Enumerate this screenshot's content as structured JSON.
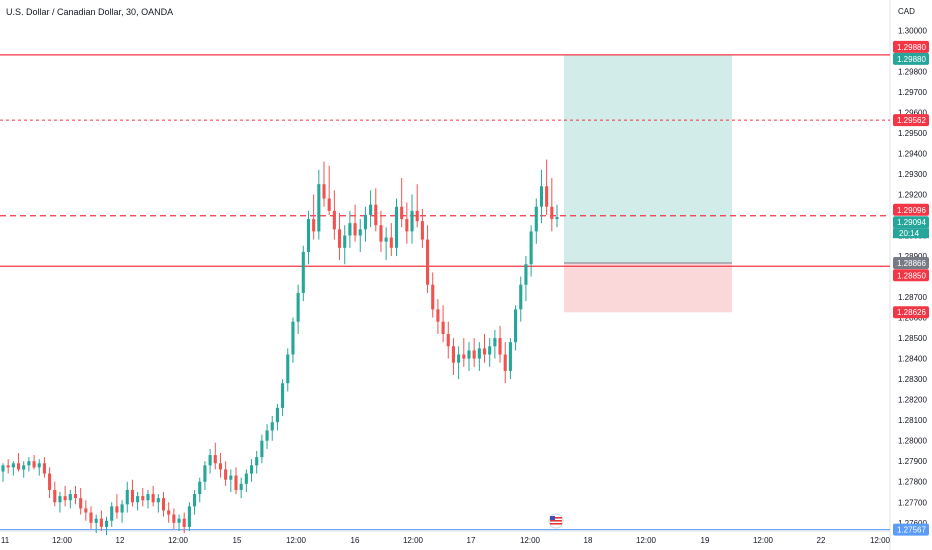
{
  "chart_data": {
    "type": "candlestick",
    "title": "U.S. Dollar / Canadian Dollar, 30, OANDA",
    "currency": "CAD",
    "ylim": [
      1.2756,
      1.3005
    ],
    "y_ticks": [
      "1.30000",
      "1.29800",
      "1.29700",
      "1.29600",
      "1.29500",
      "1.29400",
      "1.29300",
      "1.29200",
      "1.29000",
      "1.28900",
      "1.28700",
      "1.28600",
      "1.28500",
      "1.28400",
      "1.28300",
      "1.28200",
      "1.28100",
      "1.28000",
      "1.27900",
      "1.27800",
      "1.27700",
      "1.27600"
    ],
    "x_ticks": [
      "11",
      "12:00",
      "12",
      "12:00",
      "15",
      "12:00",
      "16",
      "12:00",
      "17",
      "12:00",
      "18",
      "12:00",
      "19",
      "12:00",
      "22",
      "12:00"
    ],
    "colors": {
      "up": "#26a69a",
      "down": "#ef5350",
      "level": "#f23645",
      "low": "#5b9cf6"
    },
    "candles": [
      [
        1.2785,
        1.2789,
        1.278,
        1.2788
      ],
      [
        1.2788,
        1.2791,
        1.2784,
        1.2787
      ],
      [
        1.2787,
        1.279,
        1.2783,
        1.2789
      ],
      [
        1.2789,
        1.2794,
        1.2785,
        1.2786
      ],
      [
        1.2786,
        1.279,
        1.2782,
        1.2788
      ],
      [
        1.2788,
        1.2792,
        1.2785,
        1.279
      ],
      [
        1.279,
        1.2793,
        1.2786,
        1.2787
      ],
      [
        1.2787,
        1.2791,
        1.2783,
        1.2789
      ],
      [
        1.2789,
        1.2792,
        1.2782,
        1.2784
      ],
      [
        1.2784,
        1.2787,
        1.2772,
        1.2776
      ],
      [
        1.2776,
        1.278,
        1.2768,
        1.277
      ],
      [
        1.277,
        1.2775,
        1.2765,
        1.2773
      ],
      [
        1.2773,
        1.2778,
        1.2768,
        1.2771
      ],
      [
        1.2771,
        1.2776,
        1.2767,
        1.2774
      ],
      [
        1.2774,
        1.2778,
        1.2769,
        1.2772
      ],
      [
        1.2772,
        1.2777,
        1.2764,
        1.2767
      ],
      [
        1.2767,
        1.2771,
        1.2761,
        1.2765
      ],
      [
        1.2765,
        1.2768,
        1.2757,
        1.276
      ],
      [
        1.276,
        1.2764,
        1.2755,
        1.2762
      ],
      [
        1.2762,
        1.2766,
        1.2756,
        1.2758
      ],
      [
        1.2758,
        1.2763,
        1.2754,
        1.2761
      ],
      [
        1.2761,
        1.277,
        1.2758,
        1.2768
      ],
      [
        1.2768,
        1.2774,
        1.2762,
        1.2765
      ],
      [
        1.2765,
        1.2771,
        1.276,
        1.2769
      ],
      [
        1.2769,
        1.278,
        1.2765,
        1.2776
      ],
      [
        1.2776,
        1.2781,
        1.2768,
        1.277
      ],
      [
        1.277,
        1.2775,
        1.2766,
        1.2773
      ],
      [
        1.2773,
        1.2777,
        1.2768,
        1.2771
      ],
      [
        1.2771,
        1.2776,
        1.2767,
        1.2774
      ],
      [
        1.2774,
        1.2778,
        1.2768,
        1.277
      ],
      [
        1.277,
        1.2774,
        1.2765,
        1.2772
      ],
      [
        1.2772,
        1.2775,
        1.2763,
        1.2766
      ],
      [
        1.2766,
        1.277,
        1.276,
        1.2764
      ],
      [
        1.2764,
        1.2767,
        1.2757,
        1.276
      ],
      [
        1.276,
        1.2764,
        1.2756,
        1.2762
      ],
      [
        1.2762,
        1.2765,
        1.2755,
        1.2758
      ],
      [
        1.2758,
        1.277,
        1.2756,
        1.2768
      ],
      [
        1.2768,
        1.2776,
        1.2764,
        1.2774
      ],
      [
        1.2774,
        1.2782,
        1.277,
        1.278
      ],
      [
        1.278,
        1.279,
        1.2776,
        1.2788
      ],
      [
        1.2788,
        1.2796,
        1.2784,
        1.2793
      ],
      [
        1.2793,
        1.2799,
        1.2786,
        1.2789
      ],
      [
        1.2789,
        1.2794,
        1.2782,
        1.2786
      ],
      [
        1.2786,
        1.279,
        1.2778,
        1.2781
      ],
      [
        1.2781,
        1.2786,
        1.2775,
        1.2783
      ],
      [
        1.2783,
        1.2787,
        1.2774,
        1.2776
      ],
      [
        1.2776,
        1.2782,
        1.2772,
        1.2779
      ],
      [
        1.2779,
        1.2786,
        1.2775,
        1.2784
      ],
      [
        1.2784,
        1.2791,
        1.278,
        1.2788
      ],
      [
        1.2788,
        1.2795,
        1.2784,
        1.2792
      ],
      [
        1.2792,
        1.2803,
        1.2789,
        1.28
      ],
      [
        1.28,
        1.2808,
        1.2796,
        1.2805
      ],
      [
        1.2805,
        1.2812,
        1.28,
        1.2809
      ],
      [
        1.2809,
        1.2818,
        1.2805,
        1.2816
      ],
      [
        1.2816,
        1.283,
        1.2812,
        1.2828
      ],
      [
        1.2828,
        1.2845,
        1.2824,
        1.2842
      ],
      [
        1.2842,
        1.286,
        1.2838,
        1.2858
      ],
      [
        1.2858,
        1.2876,
        1.2852,
        1.2872
      ],
      [
        1.2872,
        1.2895,
        1.2868,
        1.2892
      ],
      [
        1.2892,
        1.2912,
        1.2886,
        1.2908
      ],
      [
        1.2908,
        1.292,
        1.2898,
        1.2902
      ],
      [
        1.2902,
        1.2932,
        1.2898,
        1.2925
      ],
      [
        1.2925,
        1.2936,
        1.2914,
        1.2918
      ],
      [
        1.2918,
        1.2934,
        1.291,
        1.2912
      ],
      [
        1.2912,
        1.2922,
        1.2898,
        1.2903
      ],
      [
        1.2903,
        1.2911,
        1.2888,
        1.2894
      ],
      [
        1.2894,
        1.2905,
        1.2886,
        1.29
      ],
      [
        1.29,
        1.2912,
        1.2894,
        1.2906
      ],
      [
        1.2906,
        1.2915,
        1.2897,
        1.29
      ],
      [
        1.29,
        1.2908,
        1.2892,
        1.2903
      ],
      [
        1.2903,
        1.2914,
        1.2897,
        1.291
      ],
      [
        1.291,
        1.2922,
        1.2904,
        1.2915
      ],
      [
        1.2915,
        1.2923,
        1.2902,
        1.2905
      ],
      [
        1.2905,
        1.2912,
        1.2892,
        1.2897
      ],
      [
        1.2897,
        1.2904,
        1.2888,
        1.2899
      ],
      [
        1.2899,
        1.2906,
        1.289,
        1.2894
      ],
      [
        1.2894,
        1.2918,
        1.289,
        1.2914
      ],
      [
        1.2914,
        1.2928,
        1.2904,
        1.2908
      ],
      [
        1.2908,
        1.2916,
        1.2896,
        1.2902
      ],
      [
        1.2902,
        1.292,
        1.2896,
        1.2912
      ],
      [
        1.2912,
        1.2925,
        1.2904,
        1.2907
      ],
      [
        1.2907,
        1.2913,
        1.2894,
        1.2898
      ],
      [
        1.2898,
        1.2905,
        1.2872,
        1.2876
      ],
      [
        1.2876,
        1.2882,
        1.286,
        1.2864
      ],
      [
        1.2864,
        1.2869,
        1.2852,
        1.2858
      ],
      [
        1.2858,
        1.2866,
        1.2848,
        1.2852
      ],
      [
        1.2852,
        1.2858,
        1.284,
        1.2846
      ],
      [
        1.2846,
        1.285,
        1.2832,
        1.2838
      ],
      [
        1.2838,
        1.2846,
        1.283,
        1.2842
      ],
      [
        1.2842,
        1.285,
        1.2836,
        1.284
      ],
      [
        1.284,
        1.2848,
        1.2834,
        1.2844
      ],
      [
        1.2844,
        1.285,
        1.2836,
        1.284
      ],
      [
        1.284,
        1.2848,
        1.2834,
        1.2845
      ],
      [
        1.2845,
        1.2852,
        1.2838,
        1.2842
      ],
      [
        1.2842,
        1.285,
        1.2836,
        1.2846
      ],
      [
        1.2846,
        1.2854,
        1.284,
        1.285
      ],
      [
        1.285,
        1.2856,
        1.2838,
        1.2842
      ],
      [
        1.2842,
        1.2848,
        1.2828,
        1.2834
      ],
      [
        1.2834,
        1.285,
        1.283,
        1.2848
      ],
      [
        1.2848,
        1.2866,
        1.2844,
        1.2864
      ],
      [
        1.2864,
        1.288,
        1.2858,
        1.2876
      ],
      [
        1.2876,
        1.289,
        1.2868,
        1.2886
      ],
      [
        1.2886,
        1.2905,
        1.288,
        1.2902
      ],
      [
        1.2902,
        1.2918,
        1.2896,
        1.2914
      ],
      [
        1.2914,
        1.2932,
        1.2906,
        1.2924
      ],
      [
        1.2924,
        1.2937,
        1.291,
        1.2914
      ],
      [
        1.2914,
        1.2928,
        1.2902,
        1.2908
      ],
      [
        1.2908,
        1.2915,
        1.2904,
        1.2909
      ]
    ],
    "levels": [
      {
        "price": 1.2988,
        "label": "1.29880",
        "style": "solid"
      },
      {
        "price": 1.29562,
        "label": "1.29562",
        "style": "dotted"
      },
      {
        "price": 1.29096,
        "label": "1.29096",
        "style": "dashed"
      },
      {
        "price": 1.2885,
        "label": "1.28850",
        "style": "solid"
      },
      {
        "price": 1.27567,
        "label": "1.27567",
        "style": "low"
      }
    ],
    "badges": [
      {
        "price": 1.2988,
        "label": "1.29880",
        "color": "#f23645",
        "offset": -8
      },
      {
        "price": 1.2988,
        "label": "1.29880",
        "color": "#26a69a",
        "offset": 4
      },
      {
        "price": 1.29562,
        "label": "1.29562",
        "color": "#f23645",
        "offset": 0
      },
      {
        "price": 1.29096,
        "label": "1.29096",
        "color": "#f23645",
        "offset": -6
      },
      {
        "price": 1.29094,
        "label": "1.29094",
        "color": "#26a69a",
        "offset": 6
      },
      {
        "price": 1.28866,
        "label": "1.28866",
        "color": "#787b86",
        "offset": 0
      },
      {
        "price": 1.2885,
        "label": "1.28850",
        "color": "#f23645",
        "offset": 9
      },
      {
        "price": 1.28626,
        "label": "1.28626",
        "color": "#f23645",
        "offset": 0
      },
      {
        "price": 1.27567,
        "label": "1.27567",
        "color": "#5b9cf6",
        "offset": 0
      }
    ],
    "countdown": "20:14",
    "position": {
      "entry": 1.28866,
      "target": 1.2988,
      "stop": 1.28626,
      "profit_color": "#b2dfdb",
      "loss_color": "#f8c8cb"
    }
  }
}
